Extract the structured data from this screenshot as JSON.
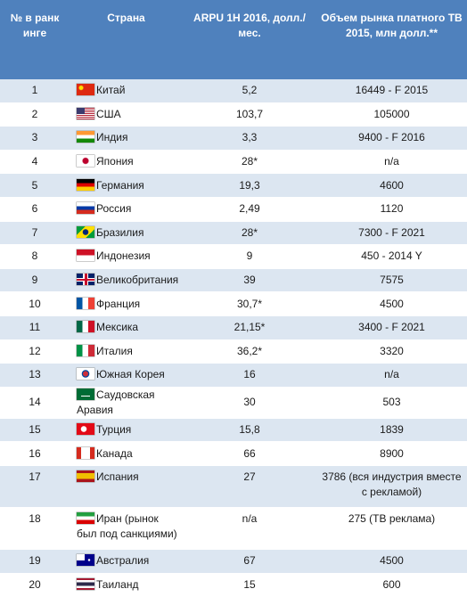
{
  "table": {
    "header": [
      "№ в ранкинге",
      "Страна",
      "ARPU 1H 2016, долл./мес.",
      "Объем рынка платного ТВ 2015, млн долл.**"
    ],
    "rows": [
      [
        "1",
        "Китай",
        "5,2",
        "16449 -  F 2015"
      ],
      [
        "2",
        "США",
        "103,7",
        "105000"
      ],
      [
        "3",
        "Индия",
        "3,3",
        "9400 - F 2016"
      ],
      [
        "4",
        "Япония",
        "28*",
        "n/a"
      ],
      [
        "5",
        "Германия",
        "19,3",
        "4600"
      ],
      [
        "6",
        "Россия",
        "2,49",
        "1120"
      ],
      [
        "7",
        "Бразилия",
        "28*",
        "7300 -  F 2021"
      ],
      [
        "8",
        "Индонезия",
        "9",
        "450 - 2014 Y"
      ],
      [
        "9",
        "Великобритания",
        "39",
        "7575"
      ],
      [
        "10",
        "Франция",
        "30,7*",
        "4500"
      ],
      [
        "11",
        "Мексика",
        "21,15*",
        "3400 - F 2021"
      ],
      [
        "12",
        "Италия",
        "36,2*",
        "3320"
      ],
      [
        "13",
        "Южная Корея",
        "16",
        "n/a"
      ],
      [
        "14",
        "Саудовская Аравия",
        "30",
        "503"
      ],
      [
        "15",
        "Турция",
        "15,8",
        "1839"
      ],
      [
        "16",
        "Канада",
        "66",
        "8900"
      ],
      [
        "17",
        "Испания",
        "27",
        "3786 (вся индустрия вместе с рекламой)"
      ],
      [
        "18",
        "Иран (рынок был под санкциями)",
        "n/a",
        "275 (ТВ реклама)"
      ],
      [
        "19",
        "Австралия",
        "67",
        "4500"
      ],
      [
        "20",
        "Таиланд",
        "15",
        "600"
      ]
    ]
  }
}
